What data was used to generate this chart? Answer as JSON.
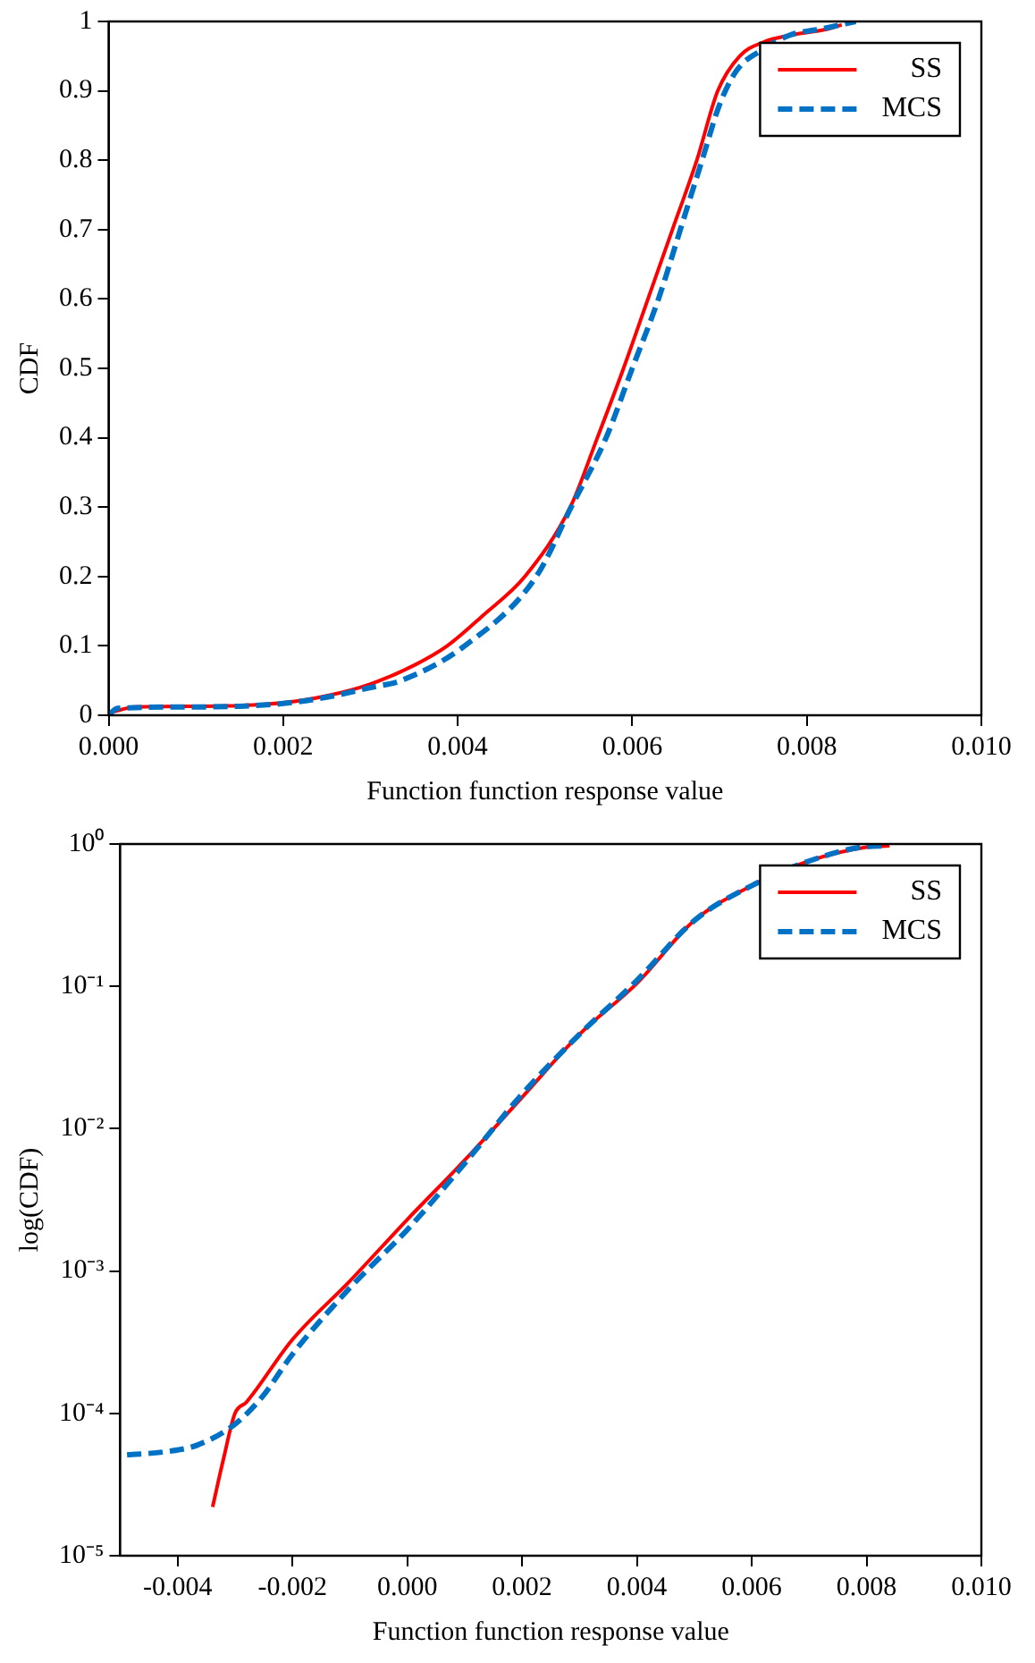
{
  "chart_data": [
    {
      "type": "line",
      "xlabel": "Function function response value",
      "ylabel": "CDF",
      "xlim": [
        0,
        0.01
      ],
      "ylim": [
        0,
        1
      ],
      "xticks": [
        {
          "value": 0,
          "label": "0.000"
        },
        {
          "value": 0.002,
          "label": "0.002"
        },
        {
          "value": 0.004,
          "label": "0.004"
        },
        {
          "value": 0.006,
          "label": "0.006"
        },
        {
          "value": 0.008,
          "label": "0.008"
        },
        {
          "value": 0.01,
          "label": "0.010"
        }
      ],
      "yticks": [
        0,
        0.1,
        0.2,
        0.3,
        0.4,
        0.5,
        0.6,
        0.7,
        0.8,
        0.9,
        1
      ],
      "grid": false,
      "legend": "top right",
      "marker": "none",
      "series": [
        {
          "name": "SS",
          "color": "#ff0000",
          "line_style": "solid",
          "x": [
            5e-05,
            0.0003,
            0.001,
            0.0015,
            0.002,
            0.0025,
            0.003,
            0.0035,
            0.00388,
            0.0043,
            0.00477,
            0.00529,
            0.0056,
            0.0059,
            0.00618,
            0.00646,
            0.00674,
            0.00698,
            0.00723,
            0.0075,
            0.0078,
            0.0082,
            0.0084
          ],
          "values": [
            0.005,
            0.012,
            0.013,
            0.014,
            0.018,
            0.028,
            0.045,
            0.072,
            0.1,
            0.145,
            0.2,
            0.3,
            0.4,
            0.5,
            0.6,
            0.7,
            0.8,
            0.9,
            0.95,
            0.97,
            0.98,
            0.988,
            0.995
          ]
        },
        {
          "name": "MCS",
          "color": "#0072c6",
          "line_style": "dashed",
          "x": [
            0,
            0.0001,
            0.001,
            0.0015,
            0.002,
            0.0025,
            0.003,
            0.00335,
            0.00408,
            0.0049,
            0.0053,
            0.0057,
            0.006,
            0.0063,
            0.0066,
            0.0068,
            0.007,
            0.0072,
            0.0075,
            0.0078,
            0.0082,
            0.00856
          ],
          "values": [
            0,
            0.01,
            0.012,
            0.013,
            0.017,
            0.026,
            0.04,
            0.05,
            0.1,
            0.2,
            0.3,
            0.4,
            0.5,
            0.6,
            0.72,
            0.8,
            0.88,
            0.93,
            0.96,
            0.98,
            0.99,
            1
          ]
        }
      ]
    },
    {
      "type": "line",
      "xlabel": "Function function response value",
      "ylabel": "log(CDF)",
      "xlim": [
        -0.005,
        0.01
      ],
      "ylim": [
        1e-05,
        1
      ],
      "log": "y",
      "xticks": [
        {
          "value": -0.004,
          "label": "-0.004"
        },
        {
          "value": -0.002,
          "label": "-0.002"
        },
        {
          "value": 0,
          "label": "0.000"
        },
        {
          "value": 0.002,
          "label": "0.002"
        },
        {
          "value": 0.004,
          "label": "0.004"
        },
        {
          "value": 0.006,
          "label": "0.006"
        },
        {
          "value": 0.008,
          "label": "0.008"
        },
        {
          "value": 0.01,
          "label": "0.010"
        }
      ],
      "yticks": [
        {
          "value": 1e-05,
          "label": "10⁻⁵"
        },
        {
          "value": 0.0001,
          "label": "10⁻⁴"
        },
        {
          "value": 0.001,
          "label": "10⁻³"
        },
        {
          "value": 0.01,
          "label": "10⁻²"
        },
        {
          "value": 0.1,
          "label": "10⁻¹"
        },
        {
          "value": 1,
          "label": "10⁰"
        }
      ],
      "grid": false,
      "legend": "top right",
      "marker": "none",
      "series": [
        {
          "name": "SS",
          "color": "#ff0000",
          "line_style": "solid",
          "x": [
            -0.00339,
            -0.0032,
            -0.003,
            -0.0028,
            -0.002,
            -0.001,
            0,
            0.001,
            0.002,
            0.003,
            0.004,
            0.005,
            0.006,
            0.007,
            0.008,
            0.0084
          ],
          "values": [
            2.2e-05,
            4.8e-05,
            0.0001,
            0.00012,
            0.00033,
            0.00085,
            0.0023,
            0.006,
            0.0166,
            0.046,
            0.105,
            0.29,
            0.51,
            0.76,
            0.95,
            0.97
          ]
        },
        {
          "name": "MCS",
          "color": "#0072c6",
          "line_style": "dashed",
          "x": [
            -0.00488,
            -0.00418,
            -0.00365,
            -0.003,
            -0.00253,
            -0.002,
            -0.001,
            0,
            0.001,
            0.002,
            0.003,
            0.004,
            0.005,
            0.006,
            0.007,
            0.008,
            0.0083
          ],
          "values": [
            5.1e-05,
            5.4e-05,
            6e-05,
            8.4e-05,
            0.00013,
            0.00026,
            0.00076,
            0.00195,
            0.0057,
            0.0175,
            0.046,
            0.11,
            0.29,
            0.51,
            0.76,
            0.96,
            0.97
          ]
        }
      ]
    }
  ]
}
